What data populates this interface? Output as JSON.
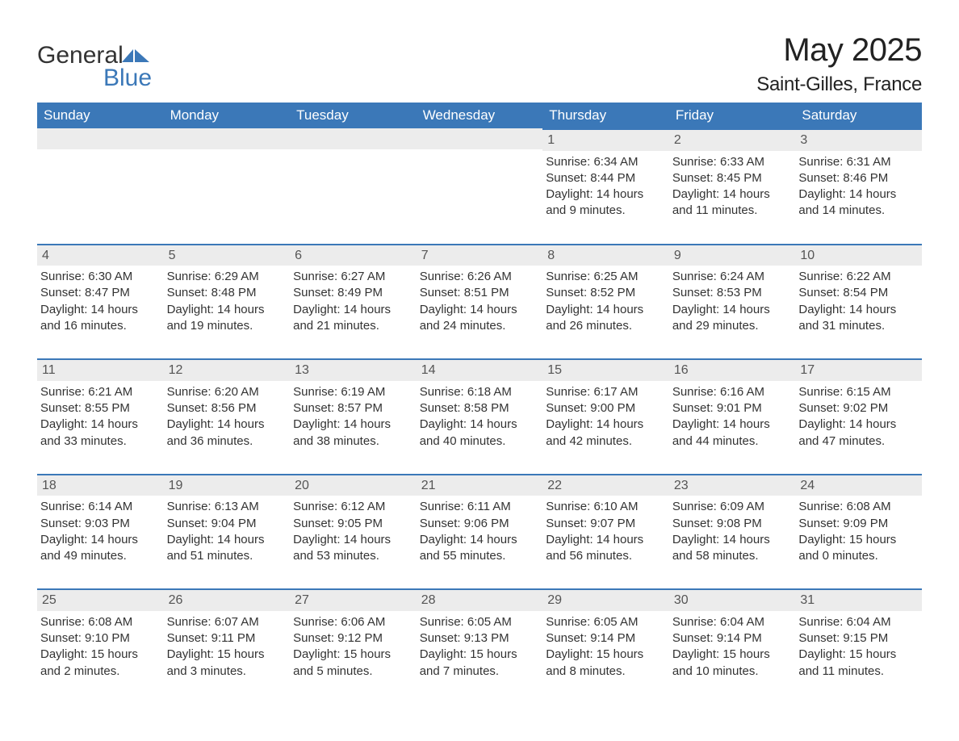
{
  "logo": {
    "text1": "General",
    "text2": "Blue",
    "icon_color": "#3b78b8",
    "text1_color": "#333333",
    "text2_color": "#3b78b8"
  },
  "header": {
    "title": "May 2025",
    "subtitle": "Saint-Gilles, France"
  },
  "colors": {
    "header_bg": "#3b78b8",
    "header_text": "#ffffff",
    "day_strip_bg": "#ececec",
    "day_strip_border": "#3b78b8",
    "text": "#333333",
    "background": "#ffffff"
  },
  "calendar": {
    "type": "table",
    "day_names": [
      "Sunday",
      "Monday",
      "Tuesday",
      "Wednesday",
      "Thursday",
      "Friday",
      "Saturday"
    ],
    "weeks": [
      [
        null,
        null,
        null,
        null,
        {
          "day": "1",
          "sunrise": "Sunrise: 6:34 AM",
          "sunset": "Sunset: 8:44 PM",
          "daylight1": "Daylight: 14 hours",
          "daylight2": "and 9 minutes."
        },
        {
          "day": "2",
          "sunrise": "Sunrise: 6:33 AM",
          "sunset": "Sunset: 8:45 PM",
          "daylight1": "Daylight: 14 hours",
          "daylight2": "and 11 minutes."
        },
        {
          "day": "3",
          "sunrise": "Sunrise: 6:31 AM",
          "sunset": "Sunset: 8:46 PM",
          "daylight1": "Daylight: 14 hours",
          "daylight2": "and 14 minutes."
        }
      ],
      [
        {
          "day": "4",
          "sunrise": "Sunrise: 6:30 AM",
          "sunset": "Sunset: 8:47 PM",
          "daylight1": "Daylight: 14 hours",
          "daylight2": "and 16 minutes."
        },
        {
          "day": "5",
          "sunrise": "Sunrise: 6:29 AM",
          "sunset": "Sunset: 8:48 PM",
          "daylight1": "Daylight: 14 hours",
          "daylight2": "and 19 minutes."
        },
        {
          "day": "6",
          "sunrise": "Sunrise: 6:27 AM",
          "sunset": "Sunset: 8:49 PM",
          "daylight1": "Daylight: 14 hours",
          "daylight2": "and 21 minutes."
        },
        {
          "day": "7",
          "sunrise": "Sunrise: 6:26 AM",
          "sunset": "Sunset: 8:51 PM",
          "daylight1": "Daylight: 14 hours",
          "daylight2": "and 24 minutes."
        },
        {
          "day": "8",
          "sunrise": "Sunrise: 6:25 AM",
          "sunset": "Sunset: 8:52 PM",
          "daylight1": "Daylight: 14 hours",
          "daylight2": "and 26 minutes."
        },
        {
          "day": "9",
          "sunrise": "Sunrise: 6:24 AM",
          "sunset": "Sunset: 8:53 PM",
          "daylight1": "Daylight: 14 hours",
          "daylight2": "and 29 minutes."
        },
        {
          "day": "10",
          "sunrise": "Sunrise: 6:22 AM",
          "sunset": "Sunset: 8:54 PM",
          "daylight1": "Daylight: 14 hours",
          "daylight2": "and 31 minutes."
        }
      ],
      [
        {
          "day": "11",
          "sunrise": "Sunrise: 6:21 AM",
          "sunset": "Sunset: 8:55 PM",
          "daylight1": "Daylight: 14 hours",
          "daylight2": "and 33 minutes."
        },
        {
          "day": "12",
          "sunrise": "Sunrise: 6:20 AM",
          "sunset": "Sunset: 8:56 PM",
          "daylight1": "Daylight: 14 hours",
          "daylight2": "and 36 minutes."
        },
        {
          "day": "13",
          "sunrise": "Sunrise: 6:19 AM",
          "sunset": "Sunset: 8:57 PM",
          "daylight1": "Daylight: 14 hours",
          "daylight2": "and 38 minutes."
        },
        {
          "day": "14",
          "sunrise": "Sunrise: 6:18 AM",
          "sunset": "Sunset: 8:58 PM",
          "daylight1": "Daylight: 14 hours",
          "daylight2": "and 40 minutes."
        },
        {
          "day": "15",
          "sunrise": "Sunrise: 6:17 AM",
          "sunset": "Sunset: 9:00 PM",
          "daylight1": "Daylight: 14 hours",
          "daylight2": "and 42 minutes."
        },
        {
          "day": "16",
          "sunrise": "Sunrise: 6:16 AM",
          "sunset": "Sunset: 9:01 PM",
          "daylight1": "Daylight: 14 hours",
          "daylight2": "and 44 minutes."
        },
        {
          "day": "17",
          "sunrise": "Sunrise: 6:15 AM",
          "sunset": "Sunset: 9:02 PM",
          "daylight1": "Daylight: 14 hours",
          "daylight2": "and 47 minutes."
        }
      ],
      [
        {
          "day": "18",
          "sunrise": "Sunrise: 6:14 AM",
          "sunset": "Sunset: 9:03 PM",
          "daylight1": "Daylight: 14 hours",
          "daylight2": "and 49 minutes."
        },
        {
          "day": "19",
          "sunrise": "Sunrise: 6:13 AM",
          "sunset": "Sunset: 9:04 PM",
          "daylight1": "Daylight: 14 hours",
          "daylight2": "and 51 minutes."
        },
        {
          "day": "20",
          "sunrise": "Sunrise: 6:12 AM",
          "sunset": "Sunset: 9:05 PM",
          "daylight1": "Daylight: 14 hours",
          "daylight2": "and 53 minutes."
        },
        {
          "day": "21",
          "sunrise": "Sunrise: 6:11 AM",
          "sunset": "Sunset: 9:06 PM",
          "daylight1": "Daylight: 14 hours",
          "daylight2": "and 55 minutes."
        },
        {
          "day": "22",
          "sunrise": "Sunrise: 6:10 AM",
          "sunset": "Sunset: 9:07 PM",
          "daylight1": "Daylight: 14 hours",
          "daylight2": "and 56 minutes."
        },
        {
          "day": "23",
          "sunrise": "Sunrise: 6:09 AM",
          "sunset": "Sunset: 9:08 PM",
          "daylight1": "Daylight: 14 hours",
          "daylight2": "and 58 minutes."
        },
        {
          "day": "24",
          "sunrise": "Sunrise: 6:08 AM",
          "sunset": "Sunset: 9:09 PM",
          "daylight1": "Daylight: 15 hours",
          "daylight2": "and 0 minutes."
        }
      ],
      [
        {
          "day": "25",
          "sunrise": "Sunrise: 6:08 AM",
          "sunset": "Sunset: 9:10 PM",
          "daylight1": "Daylight: 15 hours",
          "daylight2": "and 2 minutes."
        },
        {
          "day": "26",
          "sunrise": "Sunrise: 6:07 AM",
          "sunset": "Sunset: 9:11 PM",
          "daylight1": "Daylight: 15 hours",
          "daylight2": "and 3 minutes."
        },
        {
          "day": "27",
          "sunrise": "Sunrise: 6:06 AM",
          "sunset": "Sunset: 9:12 PM",
          "daylight1": "Daylight: 15 hours",
          "daylight2": "and 5 minutes."
        },
        {
          "day": "28",
          "sunrise": "Sunrise: 6:05 AM",
          "sunset": "Sunset: 9:13 PM",
          "daylight1": "Daylight: 15 hours",
          "daylight2": "and 7 minutes."
        },
        {
          "day": "29",
          "sunrise": "Sunrise: 6:05 AM",
          "sunset": "Sunset: 9:14 PM",
          "daylight1": "Daylight: 15 hours",
          "daylight2": "and 8 minutes."
        },
        {
          "day": "30",
          "sunrise": "Sunrise: 6:04 AM",
          "sunset": "Sunset: 9:14 PM",
          "daylight1": "Daylight: 15 hours",
          "daylight2": "and 10 minutes."
        },
        {
          "day": "31",
          "sunrise": "Sunrise: 6:04 AM",
          "sunset": "Sunset: 9:15 PM",
          "daylight1": "Daylight: 15 hours",
          "daylight2": "and 11 minutes."
        }
      ]
    ]
  }
}
